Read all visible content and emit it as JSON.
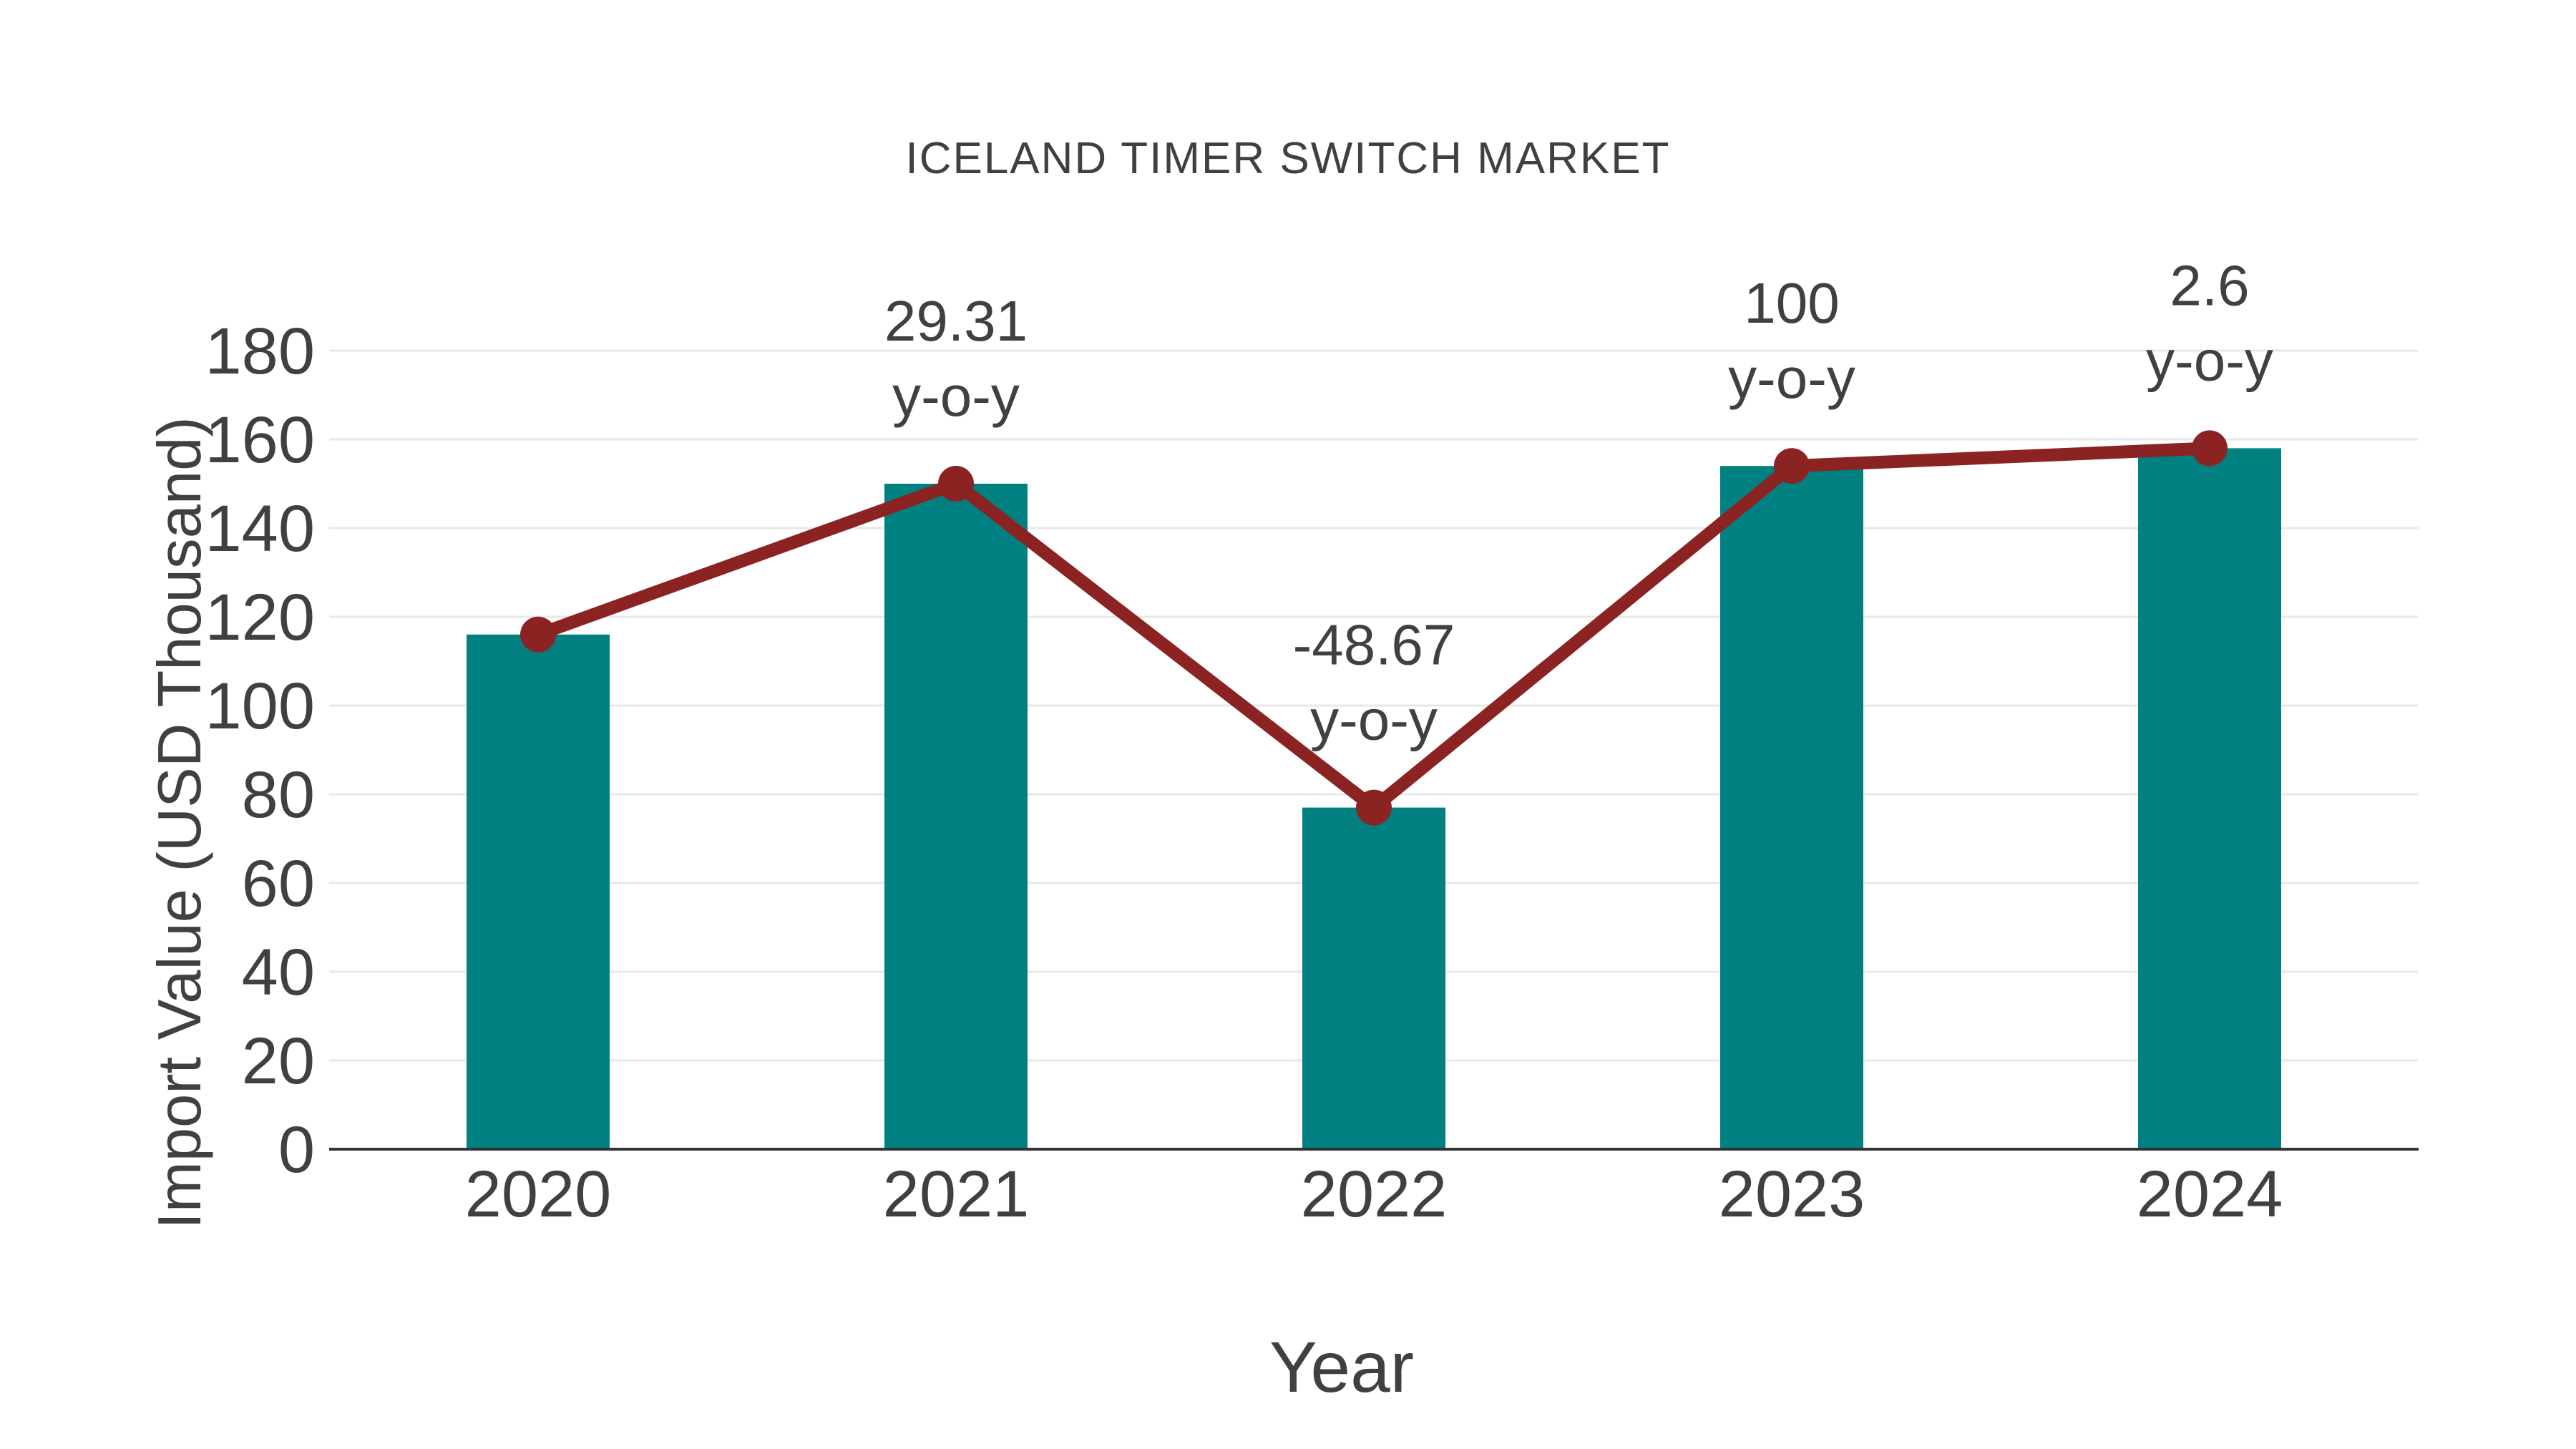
{
  "chart_data": {
    "type": "bar",
    "subtype": "bar-with-line-overlay",
    "title": "ICELAND TIMER SWITCH MARKET",
    "xlabel": "Year",
    "ylabel": "Import Value (USD Thousand)",
    "categories": [
      "2020",
      "2021",
      "2022",
      "2023",
      "2024"
    ],
    "series": [
      {
        "name": "import-value-bars",
        "type": "bar",
        "values": [
          116,
          150,
          77,
          154,
          158
        ]
      },
      {
        "name": "import-value-trend-line",
        "type": "line",
        "values": [
          116,
          150,
          77,
          154,
          158
        ]
      }
    ],
    "annotations": [
      {
        "category": "2021",
        "line1": "29.31",
        "line2": "y-o-y"
      },
      {
        "category": "2022",
        "line1": "-48.67",
        "line2": "y-o-y"
      },
      {
        "category": "2023",
        "line1": "100",
        "line2": "y-o-y"
      },
      {
        "category": "2024",
        "line1": "2.6",
        "line2": "y-o-y"
      }
    ],
    "ylim": [
      0,
      180
    ],
    "yticks": [
      0,
      20,
      40,
      60,
      80,
      100,
      120,
      140,
      160,
      180
    ],
    "grid": true,
    "legend_position": "none",
    "colors": {
      "bar": "#008080",
      "line": "#8B2323",
      "marker": "#8B2323",
      "text": "#404040",
      "grid": "#e8e8e8",
      "axis_line": "#333333",
      "background": "#ffffff"
    }
  }
}
